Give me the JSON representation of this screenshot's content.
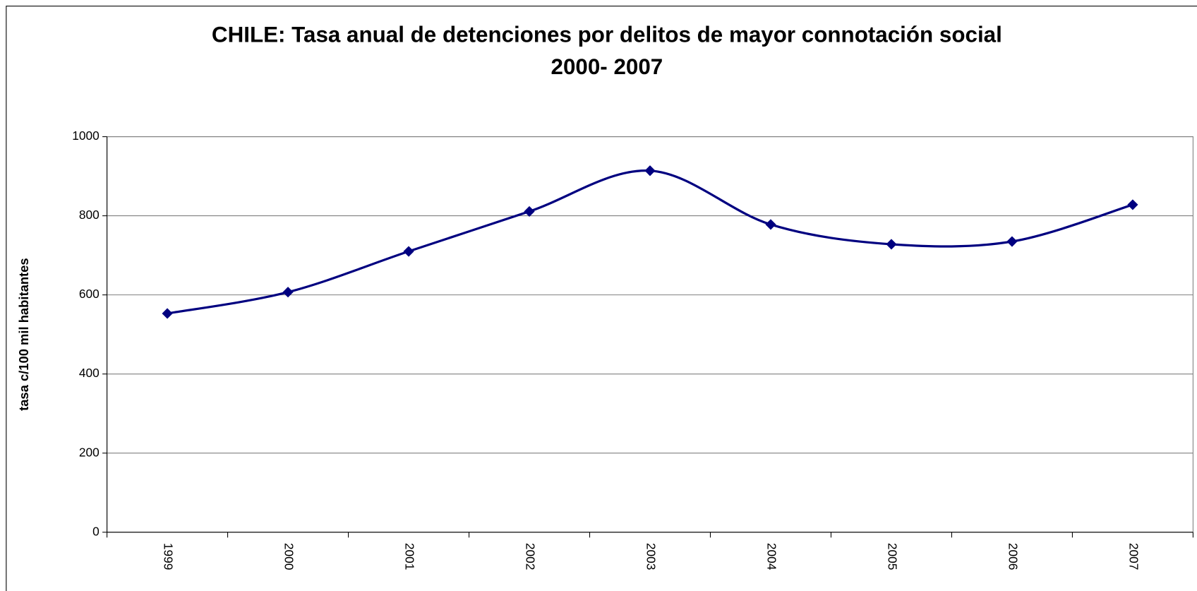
{
  "chart_data": {
    "type": "line",
    "title": [
      "CHILE: Tasa anual de detenciones por delitos de mayor connotación social",
      "2000-  2007"
    ],
    "y_label": "tasa c/100 mil habitantes",
    "categories": [
      "1999",
      "2000",
      "2001",
      "2002",
      "2003",
      "2004",
      "2005",
      "2006",
      "2007"
    ],
    "series": [
      {
        "name": "tasa",
        "color": "#000080",
        "values": [
          553,
          607,
          710,
          811,
          914,
          778,
          728,
          735,
          828
        ]
      }
    ],
    "ylim": [
      0,
      1000
    ],
    "yticks": [
      0,
      200,
      400,
      600,
      800,
      1000
    ],
    "grid": true,
    "smooth": true
  }
}
